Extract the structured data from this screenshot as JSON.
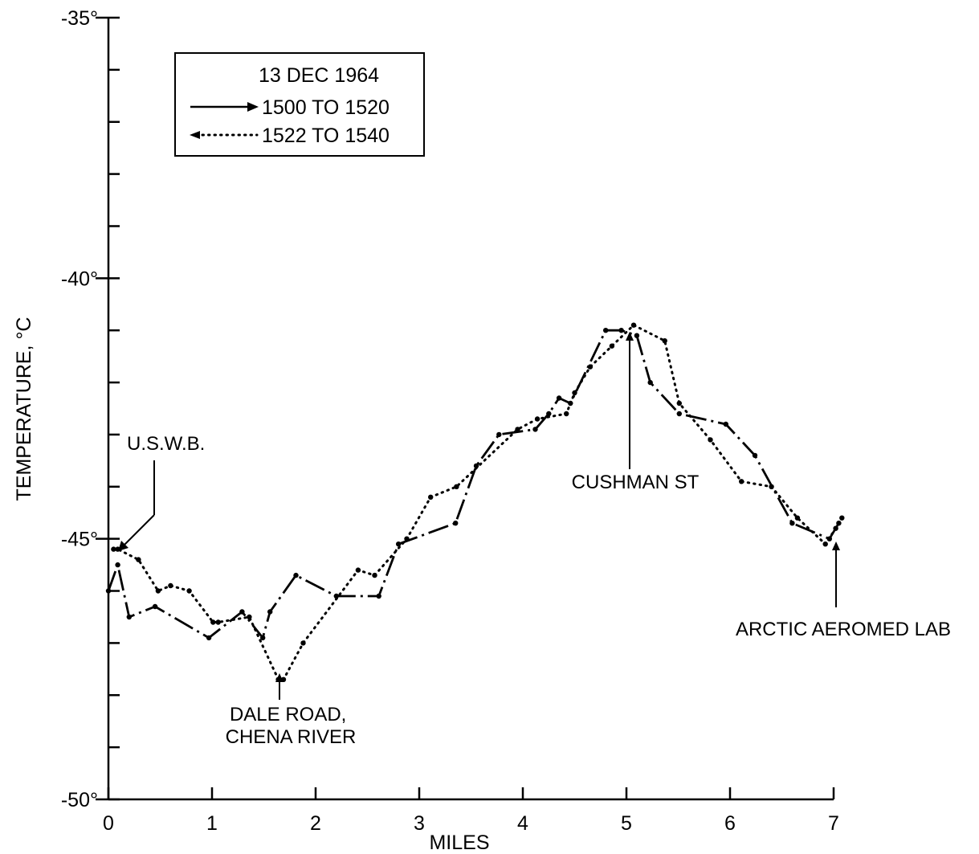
{
  "chart_data": {
    "type": "line",
    "title": "",
    "xlabel": "MILES",
    "ylabel": "TEMPERATURE, °C",
    "xlim": [
      0,
      7
    ],
    "ylim": [
      -50,
      -35
    ],
    "grid": false,
    "x_ticks": [
      0,
      1,
      2,
      3,
      4,
      5,
      6,
      7
    ],
    "x_tick_labels": [
      "0",
      "1",
      "2",
      "3",
      "4",
      "5",
      "6",
      "7"
    ],
    "y_ticks": [
      -50,
      -49,
      -48,
      -47,
      -46,
      -45,
      -44,
      -43,
      -42,
      -41,
      -40,
      -39,
      -38,
      -37,
      -36,
      -35
    ],
    "y_labeled_ticks": [
      {
        "value": -35,
        "label": "-35°"
      },
      {
        "value": -40,
        "label": "-40°"
      },
      {
        "value": -45,
        "label": "-45°"
      },
      {
        "value": -50,
        "label": "-50°"
      }
    ],
    "legend": {
      "placement": "top-left",
      "title": "13 DEC 1964",
      "entries": [
        "1500 TO 1520",
        "1522 TO 1540"
      ]
    },
    "series": [
      {
        "name": "1500 TO 1520",
        "style": "dashdot",
        "color": "#000000",
        "x": [
          0,
          0.09,
          0.2,
          0.45,
          0.97,
          1.29,
          1.49,
          1.56,
          1.81,
          2.2,
          2.61,
          2.8,
          3.35,
          3.55,
          3.77,
          4.12,
          4.25,
          4.35,
          4.46,
          4.8,
          4.95,
          5.1,
          5.23,
          5.51,
          5.96,
          6.24,
          6.6,
          6.96,
          7.05
        ],
        "y": [
          -46.0,
          -45.5,
          -46.5,
          -46.3,
          -46.9,
          -46.4,
          -46.9,
          -46.4,
          -45.7,
          -46.1,
          -46.1,
          -45.1,
          -44.7,
          -43.6,
          -43.0,
          -42.9,
          -42.6,
          -42.3,
          -42.4,
          -41.0,
          -41.0,
          -41.1,
          -42.0,
          -42.6,
          -42.8,
          -43.4,
          -44.7,
          -45.0,
          -44.7
        ]
      },
      {
        "name": "1522 TO 1540",
        "style": "dotted",
        "color": "#000000",
        "x": [
          0.05,
          0.09,
          0.29,
          0.48,
          0.6,
          0.78,
          1.01,
          1.06,
          1.36,
          1.64,
          1.69,
          1.88,
          2.41,
          2.57,
          2.88,
          3.11,
          3.36,
          3.95,
          4.14,
          4.42,
          4.5,
          4.65,
          4.86,
          5.07,
          5.37,
          5.51,
          5.81,
          6.11,
          6.4,
          6.65,
          6.92,
          7.02,
          7.08
        ],
        "y": [
          -45.2,
          -45.2,
          -45.4,
          -46.0,
          -45.9,
          -46.0,
          -46.6,
          -46.6,
          -46.5,
          -47.7,
          -47.7,
          -47.0,
          -45.6,
          -45.7,
          -45.0,
          -44.2,
          -44.0,
          -42.9,
          -42.7,
          -42.6,
          -42.2,
          -41.7,
          -41.3,
          -40.9,
          -41.2,
          -42.4,
          -43.1,
          -43.9,
          -44.0,
          -44.6,
          -45.1,
          -44.8,
          -44.6
        ]
      }
    ],
    "annotations": [
      {
        "text": "U.S.W.B.",
        "x": 0.05,
        "y": -45.2,
        "arrow": true
      },
      {
        "text": "DALE ROAD,\nCHENA RIVER",
        "x": 1.64,
        "y": -47.7,
        "arrow": true
      },
      {
        "text": "CUSHMAN ST",
        "x": 5.07,
        "y": -41.0,
        "arrow": true
      },
      {
        "text": "ARCTIC AEROMED LAB",
        "x": 7.05,
        "y": -44.8,
        "arrow": true
      }
    ]
  }
}
